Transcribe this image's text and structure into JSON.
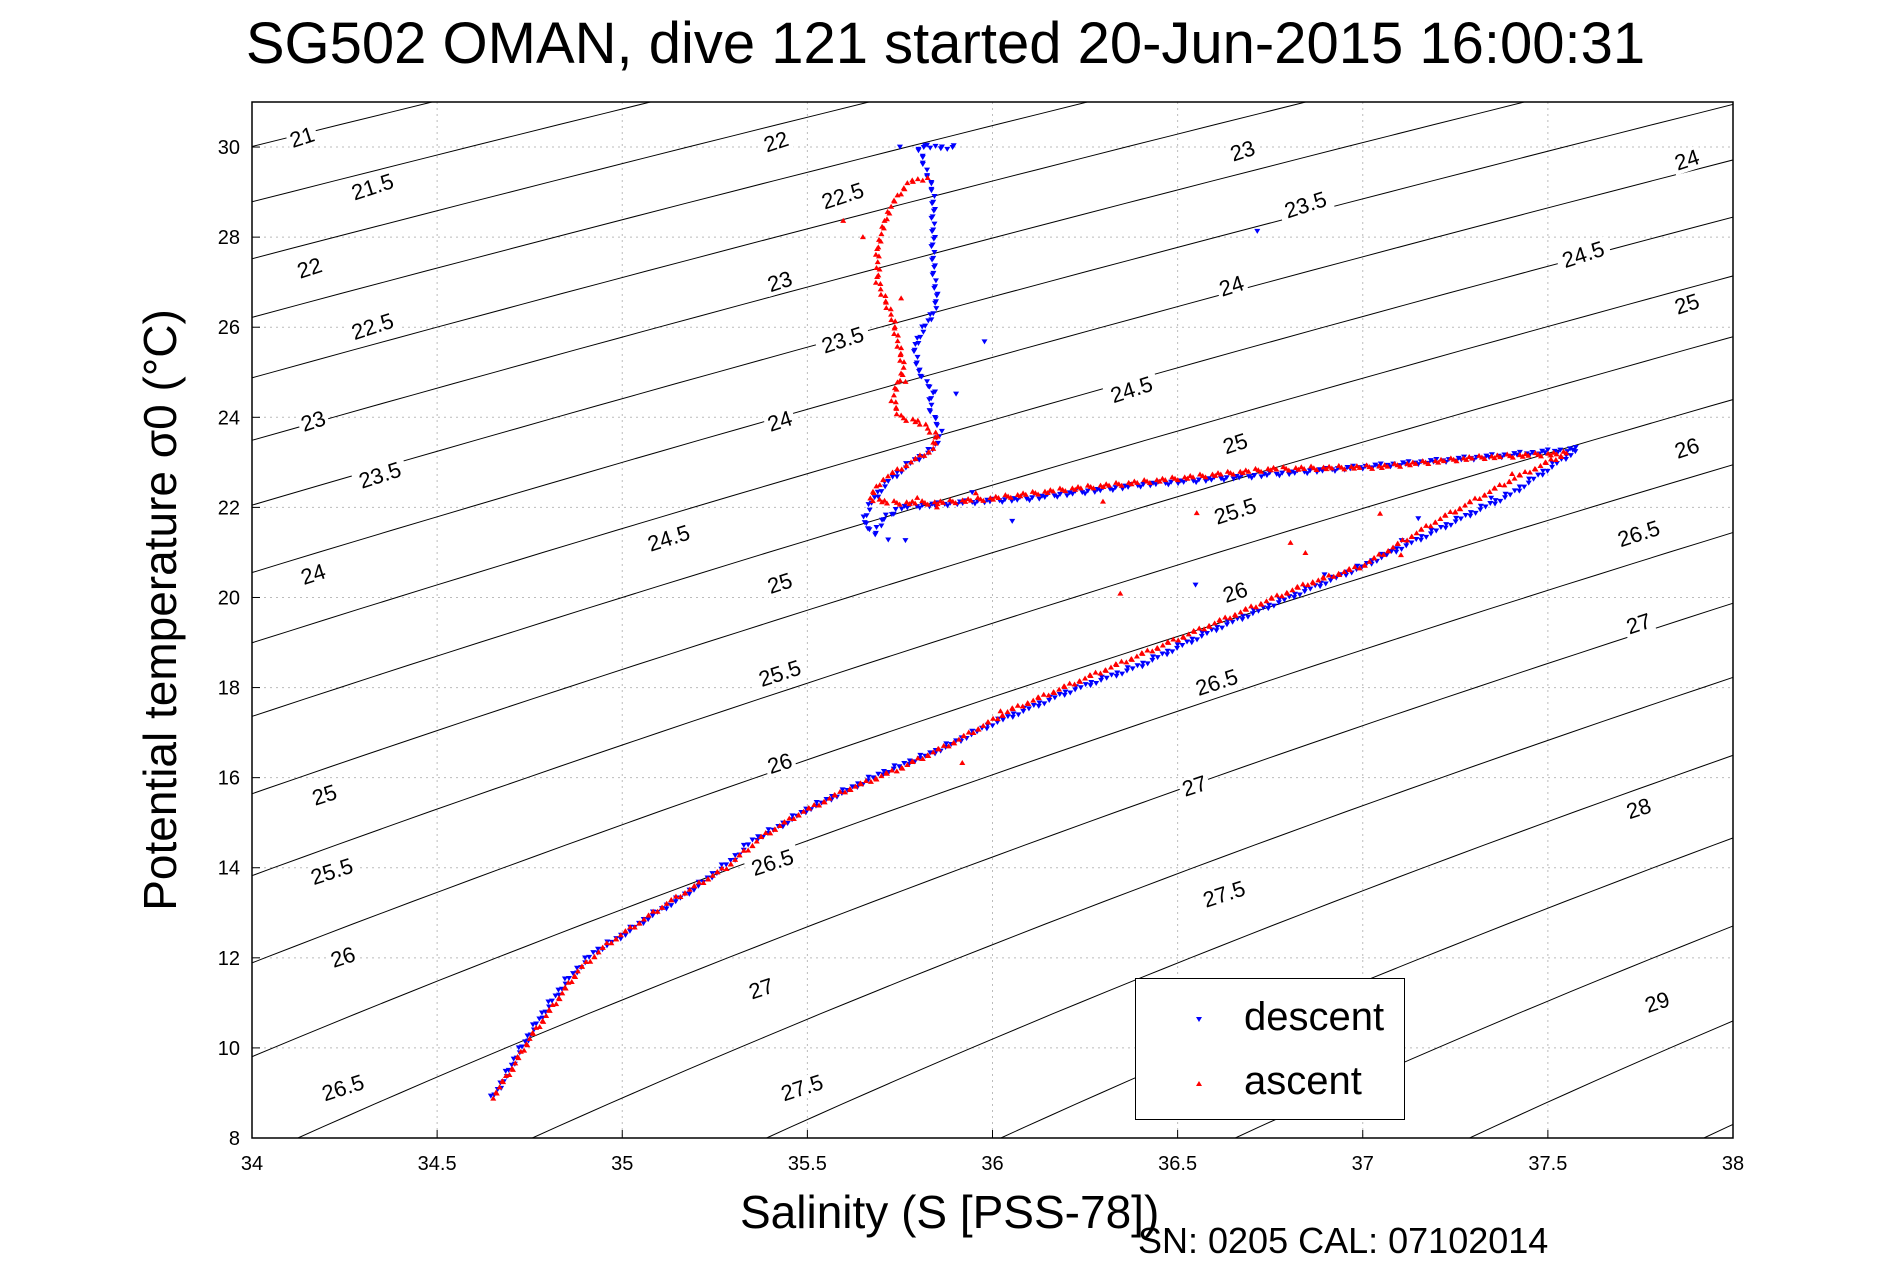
{
  "title": "SG502 OMAN, dive 121 started 20-Jun-2015 16:00:31",
  "footer": "SN: 0205  CAL: 07102014",
  "colors": {
    "descent": "#0000ff",
    "ascent": "#ff0000",
    "contour": "#000000",
    "grid": "#bbbbbb"
  },
  "chart_data": {
    "type": "scatter",
    "title": "SG502 OMAN, dive 121 started 20-Jun-2015 16:00:31",
    "xlabel": "Salinity (S [PSS-78])",
    "ylabel": "Potential temperature σ0 (°C)",
    "xlim": [
      34,
      38
    ],
    "ylim": [
      8,
      31
    ],
    "xticks": [
      "34",
      "34.5",
      "35",
      "35.5",
      "36",
      "36.5",
      "37",
      "37.5",
      "38"
    ],
    "yticks": [
      "8",
      "10",
      "12",
      "14",
      "16",
      "18",
      "20",
      "22",
      "24",
      "26",
      "28",
      "30"
    ],
    "grid": true,
    "legend_position": "bottom-right",
    "density_contours": {
      "levels": [
        "21",
        "21.5",
        "22",
        "22.5",
        "23",
        "23.5",
        "24",
        "24.5",
        "25",
        "25.5",
        "26",
        "26.5",
        "27",
        "27.5",
        "28",
        "28.5",
        "29"
      ],
      "labels": [
        {
          "text": "21",
          "s": 34.14,
          "t": 30.1
        },
        {
          "text": "21.5",
          "s": 34.33,
          "t": 29.0
        },
        {
          "text": "22",
          "s": 34.16,
          "t": 27.2
        },
        {
          "text": "22.5",
          "s": 34.33,
          "t": 25.9
        },
        {
          "text": "23",
          "s": 34.17,
          "t": 23.8
        },
        {
          "text": "23.5",
          "s": 34.35,
          "t": 22.6
        },
        {
          "text": "24",
          "s": 34.17,
          "t": 20.4
        },
        {
          "text": "24.5",
          "s": 35.13,
          "t": 21.2
        },
        {
          "text": "25",
          "s": 34.2,
          "t": 15.5
        },
        {
          "text": "25.5",
          "s": 34.22,
          "t": 13.8
        },
        {
          "text": "26",
          "s": 34.25,
          "t": 11.9
        },
        {
          "text": "26.5",
          "s": 34.25,
          "t": 9.0
        },
        {
          "text": "22",
          "s": 35.42,
          "t": 30.0
        },
        {
          "text": "22.5",
          "s": 35.6,
          "t": 28.8
        },
        {
          "text": "23",
          "s": 35.43,
          "t": 26.9
        },
        {
          "text": "23.5",
          "s": 35.6,
          "t": 25.6
        },
        {
          "text": "24",
          "s": 35.43,
          "t": 23.8
        },
        {
          "text": "25",
          "s": 35.43,
          "t": 20.2
        },
        {
          "text": "25.5",
          "s": 35.43,
          "t": 18.2
        },
        {
          "text": "26",
          "s": 35.43,
          "t": 16.2
        },
        {
          "text": "26.5",
          "s": 35.41,
          "t": 14.0
        },
        {
          "text": "27",
          "s": 35.38,
          "t": 11.2
        },
        {
          "text": "27.5",
          "s": 35.49,
          "t": 9.0
        },
        {
          "text": "23",
          "s": 36.68,
          "t": 29.8
        },
        {
          "text": "23.5",
          "s": 36.85,
          "t": 28.6
        },
        {
          "text": "24",
          "s": 36.65,
          "t": 26.8
        },
        {
          "text": "24.5",
          "s": 36.38,
          "t": 24.5
        },
        {
          "text": "25",
          "s": 36.66,
          "t": 23.3
        },
        {
          "text": "25.5",
          "s": 36.66,
          "t": 21.8
        },
        {
          "text": "26",
          "s": 36.66,
          "t": 20.0
        },
        {
          "text": "26.5",
          "s": 36.61,
          "t": 18.0
        },
        {
          "text": "27",
          "s": 36.55,
          "t": 15.7
        },
        {
          "text": "27.5",
          "s": 36.63,
          "t": 13.3
        },
        {
          "text": "24",
          "s": 37.88,
          "t": 29.6
        },
        {
          "text": "24.5",
          "s": 37.6,
          "t": 27.5
        },
        {
          "text": "25",
          "s": 37.88,
          "t": 26.4
        },
        {
          "text": "26",
          "s": 37.88,
          "t": 23.2
        },
        {
          "text": "26.5",
          "s": 37.75,
          "t": 21.3
        },
        {
          "text": "27",
          "s": 37.75,
          "t": 19.3
        },
        {
          "text": "28",
          "s": 37.75,
          "t": 15.2
        },
        {
          "text": "29",
          "s": 37.8,
          "t": 10.9
        }
      ]
    },
    "series": [
      {
        "name": "descent",
        "marker": "triangle-down",
        "color": "#0000ff",
        "path": [
          [
            34.65,
            8.9
          ],
          [
            34.68,
            9.3
          ],
          [
            34.72,
            9.9
          ],
          [
            34.78,
            10.7
          ],
          [
            34.85,
            11.5
          ],
          [
            34.92,
            12.1
          ],
          [
            35.0,
            12.5
          ],
          [
            35.07,
            12.9
          ],
          [
            35.15,
            13.3
          ],
          [
            35.22,
            13.7
          ],
          [
            35.3,
            14.2
          ],
          [
            35.35,
            14.6
          ],
          [
            35.42,
            14.9
          ],
          [
            35.5,
            15.3
          ],
          [
            35.6,
            15.7
          ],
          [
            35.7,
            16.1
          ],
          [
            35.85,
            16.6
          ],
          [
            36.0,
            17.2
          ],
          [
            36.2,
            17.9
          ],
          [
            36.4,
            18.5
          ],
          [
            36.6,
            19.3
          ],
          [
            36.8,
            20.0
          ],
          [
            37.0,
            20.7
          ],
          [
            37.2,
            21.5
          ],
          [
            37.4,
            22.3
          ],
          [
            37.58,
            23.3
          ],
          [
            37.3,
            23.1
          ],
          [
            37.0,
            22.9
          ],
          [
            36.7,
            22.7
          ],
          [
            36.4,
            22.5
          ],
          [
            36.1,
            22.2
          ],
          [
            35.9,
            22.1
          ],
          [
            35.75,
            22.0
          ],
          [
            35.7,
            21.7
          ],
          [
            35.68,
            21.4
          ],
          [
            35.65,
            21.7
          ],
          [
            35.68,
            22.2
          ],
          [
            35.72,
            22.6
          ],
          [
            35.78,
            23.0
          ],
          [
            35.84,
            23.3
          ],
          [
            35.86,
            23.7
          ],
          [
            35.83,
            24.2
          ],
          [
            35.84,
            24.6
          ],
          [
            35.8,
            25.0
          ],
          [
            35.79,
            25.6
          ],
          [
            35.85,
            26.5
          ],
          [
            35.84,
            27.4
          ],
          [
            35.84,
            28.3
          ],
          [
            35.84,
            29.0
          ],
          [
            35.8,
            30.0
          ],
          [
            35.9,
            30.0
          ]
        ],
        "scatter": [
          [
            36.55,
            20.3
          ],
          [
            36.8,
            20.0
          ],
          [
            37.1,
            21.3
          ],
          [
            36.9,
            20.5
          ],
          [
            35.75,
            30.05
          ],
          [
            35.82,
            30.05
          ],
          [
            36.72,
            28.1
          ],
          [
            35.98,
            25.7
          ],
          [
            35.9,
            24.5
          ],
          [
            35.76,
            21.3
          ],
          [
            37.35,
            22.2
          ],
          [
            37.15,
            21.8
          ],
          [
            36.05,
            21.7
          ],
          [
            35.95,
            22.3
          ],
          [
            35.72,
            21.3
          ]
        ]
      },
      {
        "name": "ascent",
        "marker": "triangle-up",
        "color": "#ff0000",
        "path": [
          [
            34.65,
            8.9
          ],
          [
            34.7,
            9.5
          ],
          [
            34.75,
            10.2
          ],
          [
            34.82,
            11.0
          ],
          [
            34.88,
            11.7
          ],
          [
            34.96,
            12.3
          ],
          [
            35.05,
            12.8
          ],
          [
            35.12,
            13.2
          ],
          [
            35.2,
            13.6
          ],
          [
            35.28,
            14.0
          ],
          [
            35.38,
            14.7
          ],
          [
            35.48,
            15.2
          ],
          [
            35.6,
            15.7
          ],
          [
            35.75,
            16.2
          ],
          [
            35.9,
            16.8
          ],
          [
            36.05,
            17.5
          ],
          [
            36.25,
            18.2
          ],
          [
            36.45,
            18.9
          ],
          [
            36.65,
            19.6
          ],
          [
            36.85,
            20.3
          ],
          [
            37.0,
            20.7
          ],
          [
            37.2,
            21.7
          ],
          [
            37.4,
            22.6
          ],
          [
            37.55,
            23.2
          ],
          [
            37.3,
            23.1
          ],
          [
            37.05,
            22.9
          ],
          [
            36.75,
            22.85
          ],
          [
            36.45,
            22.6
          ],
          [
            36.2,
            22.4
          ],
          [
            36.0,
            22.2
          ],
          [
            35.85,
            22.1
          ],
          [
            35.72,
            22.1
          ],
          [
            35.67,
            22.2
          ],
          [
            35.7,
            22.6
          ],
          [
            35.78,
            23.0
          ],
          [
            35.84,
            23.3
          ],
          [
            35.85,
            23.6
          ],
          [
            35.8,
            23.9
          ],
          [
            35.75,
            24.0
          ],
          [
            35.73,
            24.4
          ],
          [
            35.76,
            25.1
          ],
          [
            35.73,
            26.2
          ],
          [
            35.69,
            27.0
          ],
          [
            35.69,
            27.8
          ],
          [
            35.72,
            28.6
          ],
          [
            35.77,
            29.2
          ],
          [
            35.82,
            29.3
          ]
        ],
        "scatter": [
          [
            35.6,
            28.4
          ],
          [
            35.65,
            28.0
          ],
          [
            35.75,
            26.6
          ],
          [
            35.77,
            24.8
          ],
          [
            36.3,
            22.1
          ],
          [
            36.55,
            21.9
          ],
          [
            36.8,
            21.2
          ],
          [
            37.05,
            21.9
          ],
          [
            37.25,
            21.9
          ],
          [
            37.4,
            22.7
          ],
          [
            36.35,
            20.1
          ],
          [
            35.92,
            16.3
          ],
          [
            36.02,
            17.5
          ],
          [
            35.95,
            22.3
          ],
          [
            35.8,
            22.25
          ],
          [
            35.85,
            22.0
          ],
          [
            37.1,
            20.9
          ],
          [
            36.85,
            21.0
          ]
        ]
      }
    ]
  },
  "legend": {
    "items": [
      {
        "label": "descent"
      },
      {
        "label": "ascent"
      }
    ]
  }
}
